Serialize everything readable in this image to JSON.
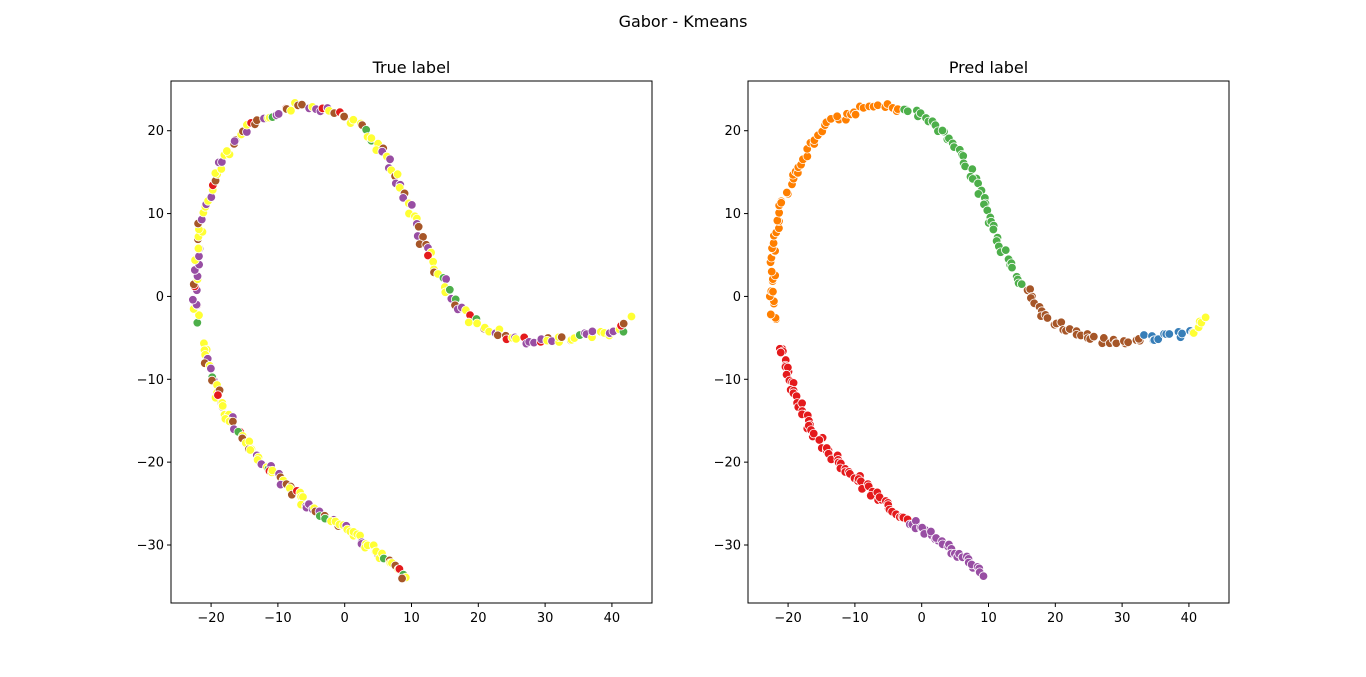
{
  "figure": {
    "suptitle": "Gabor - Kmeans"
  },
  "palette": {
    "red": "#e41a1c",
    "blue": "#377eb8",
    "green": "#4daf4a",
    "purple": "#984ea3",
    "orange": "#ff7f00",
    "yellow": "#ffff33",
    "brown": "#a65628"
  },
  "chart_data": [
    {
      "type": "scatter",
      "title": "True label",
      "xlim": [
        -26,
        46
      ],
      "ylim": [
        -37,
        26
      ],
      "xticks": [
        -20,
        -10,
        0,
        10,
        20,
        30,
        40
      ],
      "yticks": [
        -30,
        -20,
        -10,
        0,
        10,
        20
      ],
      "xtick_labels": [
        "−20",
        "−10",
        "0",
        "10",
        "20",
        "30",
        "40"
      ],
      "ytick_labels": [
        "−30",
        "−20",
        "−10",
        "0",
        "10",
        "20"
      ],
      "grid": false,
      "marker_edge": "#ffffff",
      "coloring": "mixed",
      "color_cycle": [
        "yellow",
        "purple",
        "yellow",
        "brown",
        "red",
        "yellow",
        "purple",
        "green",
        "yellow",
        "purple",
        "yellow",
        "brown"
      ],
      "curves": [
        {
          "name": "upper-arc",
          "path": [
            [
              -22.2,
              -3.0
            ],
            [
              -22.5,
              0
            ],
            [
              -22.3,
              3
            ],
            [
              -22.0,
              6
            ],
            [
              -21.5,
              9
            ],
            [
              -20.5,
              12
            ],
            [
              -19.0,
              15
            ],
            [
              -17,
              18
            ],
            [
              -14.5,
              20.5
            ],
            [
              -11,
              22
            ],
            [
              -7,
              23
            ],
            [
              -3,
              22.7
            ],
            [
              0,
              21.8
            ],
            [
              3,
              20
            ],
            [
              5.5,
              17.5
            ],
            [
              7.5,
              15
            ],
            [
              9,
              12
            ],
            [
              10.5,
              9
            ],
            [
              12,
              6
            ],
            [
              13.5,
              3.5
            ],
            [
              15,
              1.5
            ],
            [
              17,
              -1
            ],
            [
              19,
              -2.8
            ],
            [
              22,
              -4
            ],
            [
              25,
              -5
            ],
            [
              28,
              -5.5
            ],
            [
              31,
              -5.4
            ],
            [
              34,
              -5.0
            ],
            [
              37,
              -4.7
            ],
            [
              40,
              -4.3
            ],
            [
              41.5,
              -3.8
            ],
            [
              42.5,
              -2.5
            ]
          ],
          "n_points": 170
        },
        {
          "name": "lower-arc",
          "path": [
            [
              -21,
              -6.0
            ],
            [
              -20.5,
              -8
            ],
            [
              -19.8,
              -10
            ],
            [
              -19,
              -12
            ],
            [
              -17.5,
              -14.5
            ],
            [
              -16,
              -16.5
            ],
            [
              -14.5,
              -18
            ],
            [
              -13,
              -19.5
            ],
            [
              -11,
              -21
            ],
            [
              -9,
              -22.5
            ],
            [
              -7,
              -24
            ],
            [
              -5,
              -25.5
            ],
            [
              -3,
              -26.5
            ],
            [
              0,
              -28
            ],
            [
              3,
              -29.5
            ],
            [
              5,
              -31
            ],
            [
              7,
              -32
            ],
            [
              8.5,
              -33
            ],
            [
              9,
              -34
            ]
          ],
          "n_points": 110
        }
      ]
    },
    {
      "type": "scatter",
      "title": "Pred label",
      "xlim": [
        -26,
        46
      ],
      "ylim": [
        -37,
        26
      ],
      "xticks": [
        -20,
        -10,
        0,
        10,
        20,
        30,
        40
      ],
      "yticks": [
        -30,
        -20,
        -10,
        0,
        10,
        20
      ],
      "xtick_labels": [
        "−20",
        "−10",
        "0",
        "10",
        "20",
        "30",
        "40"
      ],
      "ytick_labels": [
        "−30",
        "−20",
        "−10",
        "0",
        "10",
        "20"
      ],
      "grid": false,
      "marker_edge": "#ffffff",
      "coloring": "segments",
      "curves": [
        {
          "name": "upper-arc",
          "path": [
            [
              -22.2,
              -3.0
            ],
            [
              -22.5,
              0
            ],
            [
              -22.3,
              3
            ],
            [
              -22.0,
              6
            ],
            [
              -21.5,
              9
            ],
            [
              -20.5,
              12
            ],
            [
              -19.0,
              15
            ],
            [
              -17,
              18
            ],
            [
              -14.5,
              20.5
            ],
            [
              -11,
              22
            ],
            [
              -7,
              23
            ],
            [
              -3,
              22.7
            ],
            [
              0,
              21.8
            ],
            [
              3,
              20
            ],
            [
              5.5,
              17.5
            ],
            [
              7.5,
              15
            ],
            [
              9,
              12
            ],
            [
              10.5,
              9
            ],
            [
              12,
              6
            ],
            [
              13.5,
              3.5
            ],
            [
              15,
              1.5
            ],
            [
              17,
              -1
            ],
            [
              19,
              -2.8
            ],
            [
              22,
              -4
            ],
            [
              25,
              -5
            ],
            [
              28,
              -5.5
            ],
            [
              31,
              -5.4
            ],
            [
              34,
              -5.0
            ],
            [
              37,
              -4.7
            ],
            [
              40,
              -4.3
            ],
            [
              41.5,
              -3.8
            ],
            [
              42.5,
              -2.5
            ]
          ],
          "n_points": 170,
          "segments": [
            {
              "from": 0.0,
              "to": 0.385,
              "color": "orange"
            },
            {
              "from": 0.385,
              "to": 0.69,
              "color": "green"
            },
            {
              "from": 0.69,
              "to": 0.895,
              "color": "brown"
            },
            {
              "from": 0.895,
              "to": 0.975,
              "color": "blue"
            },
            {
              "from": 0.975,
              "to": 1.0,
              "color": "yellow"
            }
          ]
        },
        {
          "name": "lower-arc",
          "path": [
            [
              -21,
              -6.0
            ],
            [
              -20.5,
              -8
            ],
            [
              -19.8,
              -10
            ],
            [
              -19,
              -12
            ],
            [
              -17.5,
              -14.5
            ],
            [
              -16,
              -16.5
            ],
            [
              -14.5,
              -18
            ],
            [
              -13,
              -19.5
            ],
            [
              -11,
              -21
            ],
            [
              -9,
              -22.5
            ],
            [
              -7,
              -24
            ],
            [
              -5,
              -25.5
            ],
            [
              -3,
              -26.5
            ],
            [
              0,
              -28
            ],
            [
              3,
              -29.5
            ],
            [
              5,
              -31
            ],
            [
              7,
              -32
            ],
            [
              8.5,
              -33
            ],
            [
              9,
              -34
            ]
          ],
          "n_points": 110,
          "segments": [
            {
              "from": 0.0,
              "to": 0.69,
              "color": "red"
            },
            {
              "from": 0.69,
              "to": 1.0,
              "color": "purple"
            }
          ]
        }
      ]
    }
  ]
}
